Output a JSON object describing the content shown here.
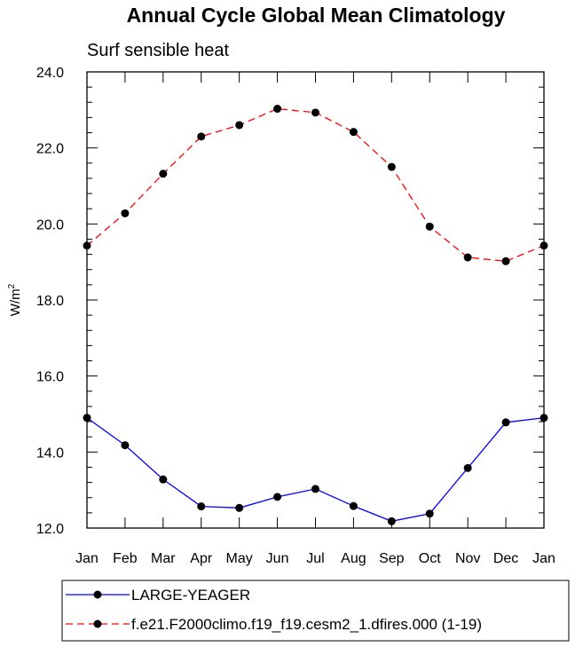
{
  "chart_data": {
    "type": "line",
    "title": "Annual Cycle Global Mean Climatology",
    "subtitle": "Surf sensible heat",
    "ylabel_base": "W/m",
    "ylabel_sup": "2",
    "categories": [
      "Jan",
      "Feb",
      "Mar",
      "Apr",
      "May",
      "Jun",
      "Jul",
      "Aug",
      "Sep",
      "Oct",
      "Nov",
      "Dec",
      "Jan"
    ],
    "ylim": [
      12.0,
      24.0
    ],
    "yticks": [
      "12.0",
      "14.0",
      "16.0",
      "18.0",
      "20.0",
      "22.0",
      "24.0"
    ],
    "series": [
      {
        "name": "LARGE-YEAGER",
        "color": "#0000ff",
        "dash": "solid",
        "values": [
          14.9,
          14.18,
          13.28,
          12.57,
          12.53,
          12.82,
          13.03,
          12.58,
          12.18,
          12.38,
          13.58,
          14.78,
          14.9
        ]
      },
      {
        "name": "f.e21.F2000climo.f19_f19.cesm2_1.dfires.000 (1-19)",
        "color": "#ff0000",
        "dash": "dashed",
        "values": [
          19.43,
          20.28,
          21.32,
          22.3,
          22.6,
          23.03,
          22.93,
          22.42,
          21.5,
          19.93,
          19.12,
          19.02,
          19.43
        ]
      }
    ],
    "grid": false,
    "legend_position": "bottom"
  }
}
